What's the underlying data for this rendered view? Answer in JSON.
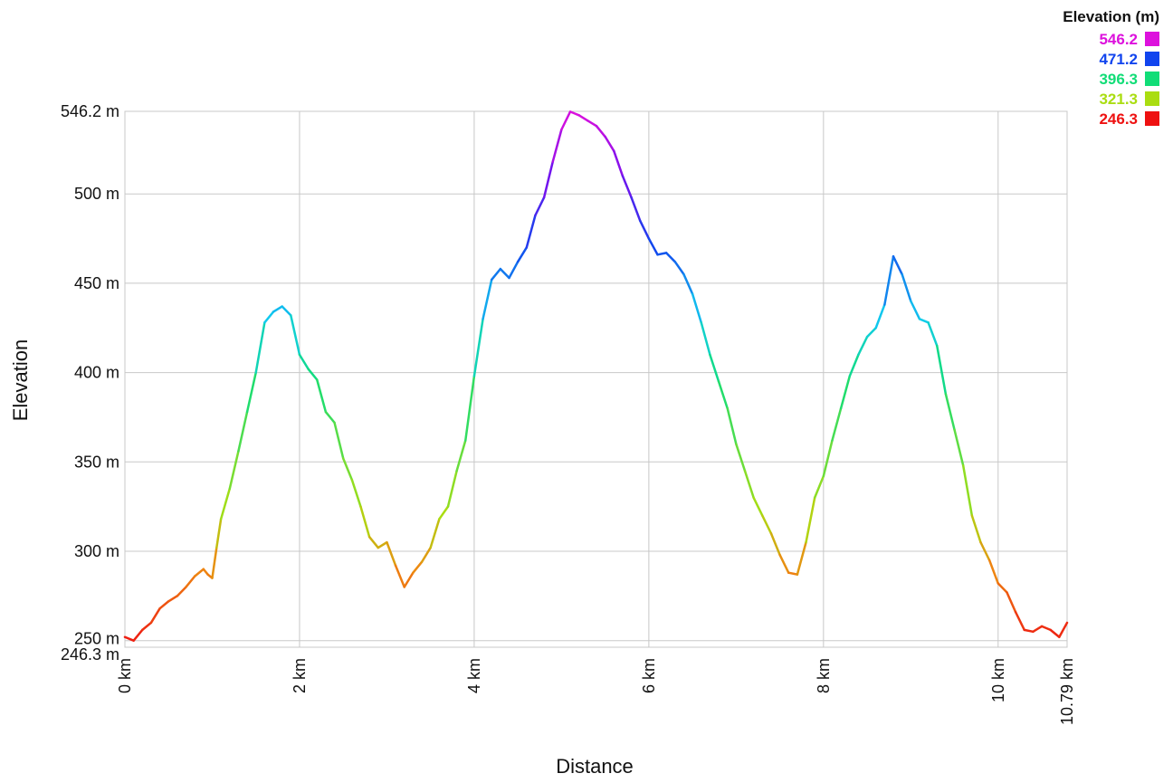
{
  "chart_data": {
    "type": "line",
    "title": "",
    "xlabel": "Distance",
    "ylabel": "Elevation",
    "xlim": [
      0,
      10.79
    ],
    "ylim": [
      246.3,
      546.2
    ],
    "grid": true,
    "x_ticks": [
      {
        "value": 0,
        "label": "0 km"
      },
      {
        "value": 2,
        "label": "2 km"
      },
      {
        "value": 4,
        "label": "4 km"
      },
      {
        "value": 6,
        "label": "6 km"
      },
      {
        "value": 8,
        "label": "8 km"
      },
      {
        "value": 10,
        "label": "10 km"
      },
      {
        "value": 10.79,
        "label": "10.79 km"
      }
    ],
    "y_ticks": [
      {
        "value": 546.2,
        "label": "546.2 m"
      },
      {
        "value": 500,
        "label": "500 m"
      },
      {
        "value": 450,
        "label": "450 m"
      },
      {
        "value": 400,
        "label": "400 m"
      },
      {
        "value": 350,
        "label": "350 m"
      },
      {
        "value": 300,
        "label": "300 m"
      },
      {
        "value": 250,
        "label": "250 m"
      },
      {
        "value": 246.3,
        "label": "246.3 m"
      }
    ],
    "legend": {
      "title": "Elevation (m)",
      "position": "top-right",
      "entries": [
        {
          "label": "546.2",
          "color": "#dd11dd"
        },
        {
          "label": "471.2",
          "color": "#1144ee"
        },
        {
          "label": "396.3",
          "color": "#11dd77"
        },
        {
          "label": "321.3",
          "color": "#aadd11"
        },
        {
          "label": "246.3",
          "color": "#ee1111"
        }
      ]
    },
    "color_scale": {
      "stops": [
        {
          "value": 246.3,
          "color": "#ee1111"
        },
        {
          "value": 290,
          "color": "#ee8811"
        },
        {
          "value": 321.3,
          "color": "#aadd11"
        },
        {
          "value": 396.3,
          "color": "#11dd77"
        },
        {
          "value": 430,
          "color": "#11ccee"
        },
        {
          "value": 471.2,
          "color": "#1144ee"
        },
        {
          "value": 510,
          "color": "#7711ee"
        },
        {
          "value": 546.2,
          "color": "#dd11dd"
        }
      ]
    },
    "series": [
      {
        "x": [
          0,
          0.1,
          0.2,
          0.3,
          0.4,
          0.5,
          0.6,
          0.7,
          0.8,
          0.9,
          0.95,
          1.0,
          1.05,
          1.1,
          1.2,
          1.3,
          1.4,
          1.5,
          1.6,
          1.7,
          1.8,
          1.9,
          2.0,
          2.1,
          2.2,
          2.3,
          2.4,
          2.5,
          2.6,
          2.7,
          2.8,
          2.9,
          3.0,
          3.1,
          3.2,
          3.3,
          3.4,
          3.5,
          3.6,
          3.7,
          3.8,
          3.9,
          4.0,
          4.1,
          4.2,
          4.3,
          4.4,
          4.5,
          4.6,
          4.7,
          4.8,
          4.9,
          5.0,
          5.1,
          5.2,
          5.3,
          5.4,
          5.5,
          5.6,
          5.7,
          5.8,
          5.9,
          6.0,
          6.1,
          6.2,
          6.3,
          6.4,
          6.5,
          6.6,
          6.7,
          6.8,
          6.9,
          7.0,
          7.1,
          7.2,
          7.3,
          7.4,
          7.5,
          7.6,
          7.7,
          7.8,
          7.9,
          8.0,
          8.1,
          8.2,
          8.3,
          8.4,
          8.5,
          8.6,
          8.7,
          8.8,
          8.9,
          9.0,
          9.1,
          9.2,
          9.3,
          9.4,
          9.5,
          9.6,
          9.7,
          9.8,
          9.9,
          10.0,
          10.1,
          10.2,
          10.3,
          10.4,
          10.5,
          10.6,
          10.7,
          10.79
        ],
        "y": [
          252,
          250,
          256,
          260,
          268,
          272,
          275,
          280,
          286,
          290,
          287,
          285,
          302,
          318,
          335,
          356,
          378,
          400,
          428,
          434,
          437,
          432,
          410,
          402,
          396,
          378,
          372,
          352,
          340,
          325,
          308,
          302,
          305,
          292,
          280,
          288,
          294,
          302,
          318,
          325,
          345,
          362,
          398,
          430,
          452,
          458,
          453,
          462,
          470,
          488,
          498,
          518,
          536,
          546,
          544,
          541,
          538,
          532,
          524,
          510,
          498,
          485,
          475,
          466,
          467,
          462,
          455,
          444,
          428,
          410,
          395,
          380,
          360,
          345,
          330,
          320,
          310,
          298,
          288,
          287,
          305,
          330,
          342,
          362,
          380,
          398,
          410,
          420,
          425,
          438,
          465,
          455,
          440,
          430,
          428,
          415,
          388,
          368,
          348,
          320,
          305,
          295,
          282,
          277,
          266,
          256,
          255,
          258,
          256,
          252,
          260
        ]
      }
    ]
  }
}
